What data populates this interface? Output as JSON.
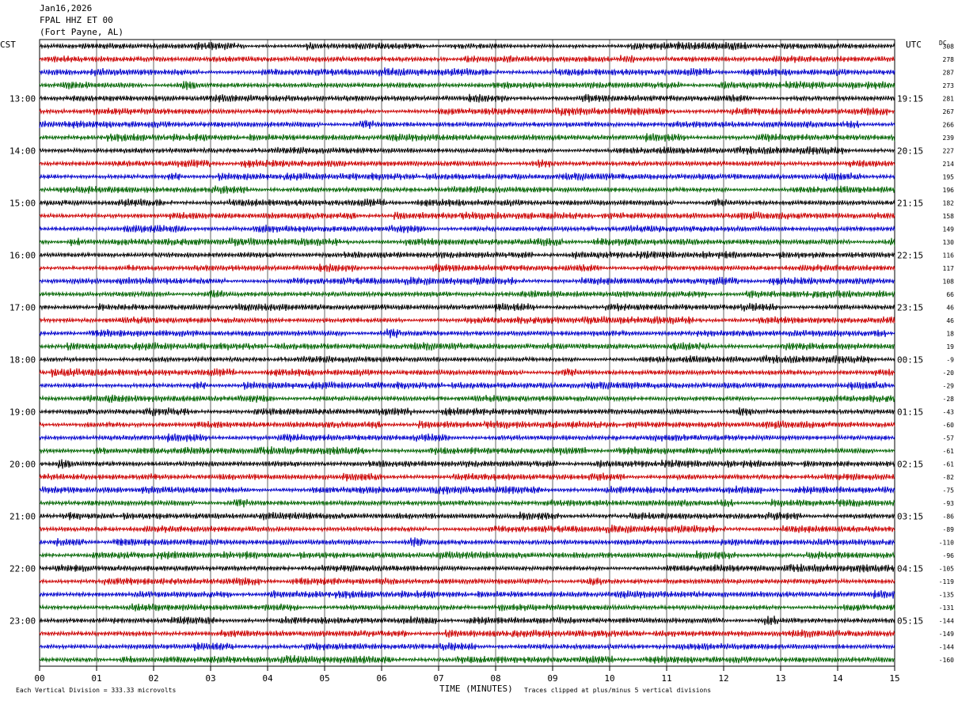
{
  "header": {
    "date": "Jan16,2026",
    "station": "FPAL HHZ ET 00",
    "location": "(Fort Payne, AL)"
  },
  "labels": {
    "left_tz": "CST",
    "right_tz": "UTC",
    "dc": "DC",
    "xlabel": "TIME (MINUTES)",
    "division_note": "Each Vertical Division =  333.33 microvolts",
    "clip_note": "Traces clipped at plus/minus 5 vertical divisions"
  },
  "colors": {
    "trace_cycle": [
      "#000000",
      "#cc0000",
      "#0000cc",
      "#006400"
    ],
    "grid": "#000000"
  },
  "chart_data": {
    "type": "line",
    "description_type": "helicorder",
    "x": [
      "00",
      "01",
      "02",
      "03",
      "04",
      "05",
      "06",
      "07",
      "08",
      "09",
      "10",
      "11",
      "12",
      "13",
      "14",
      "15"
    ],
    "xlim": [
      0,
      15
    ],
    "rows": 48,
    "row_minutes": 15,
    "hour_labels_cst": [
      "13:00",
      "14:00",
      "15:00",
      "16:00",
      "17:00",
      "18:00",
      "19:00",
      "20:00",
      "21:00",
      "22:00",
      "23:00"
    ],
    "hour_labels_utc": [
      "19:15",
      "20:15",
      "21:15",
      "22:15",
      "23:15",
      "00:15",
      "01:15",
      "02:15",
      "03:15",
      "04:15",
      "05:15"
    ],
    "first_hour_row": 4,
    "dc_offsets": [
      308,
      278,
      287,
      273,
      281,
      267,
      266,
      239,
      227,
      214,
      195,
      196,
      182,
      158,
      149,
      130,
      116,
      117,
      108,
      66,
      46,
      46,
      18,
      19,
      -9,
      -20,
      -29,
      -28,
      -43,
      -60,
      -57,
      -61,
      -61,
      -82,
      -75,
      -93,
      -86,
      -89,
      -110,
      -96,
      -105,
      -119,
      -135,
      -131,
      -144,
      -149,
      -144,
      -160
    ]
  }
}
